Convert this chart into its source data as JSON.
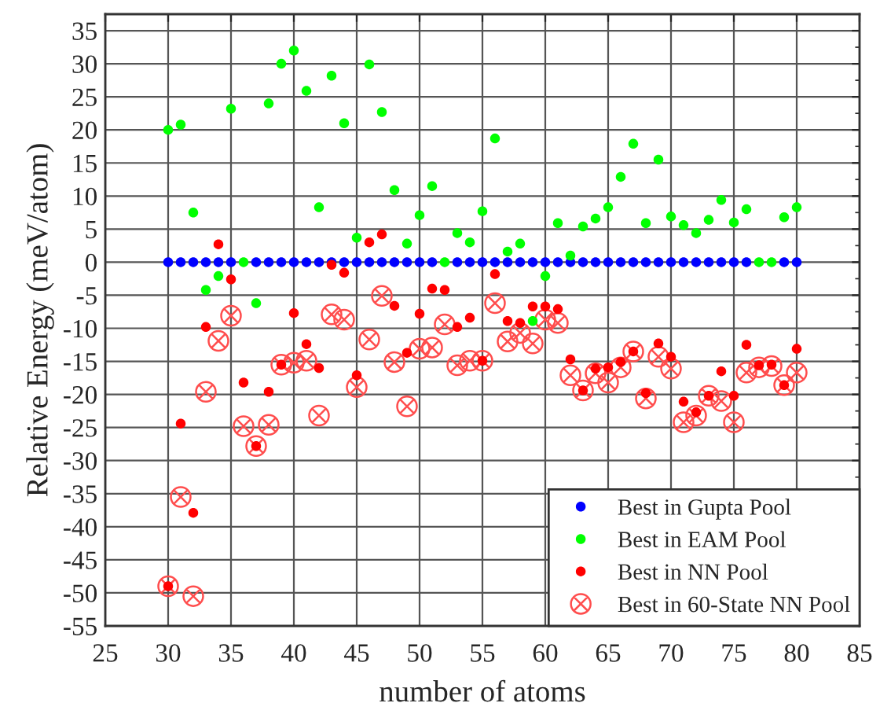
{
  "chart_data": {
    "type": "scatter",
    "xlabel": "number of atoms",
    "ylabel": "Relative Energy (meV/atom)",
    "xlim": [
      25,
      85
    ],
    "xticks": [
      25,
      30,
      35,
      40,
      45,
      50,
      55,
      60,
      65,
      70,
      75,
      80,
      85
    ],
    "ylim": [
      -55,
      37.5
    ],
    "yticks": [
      -55,
      -50,
      -45,
      -40,
      -35,
      -30,
      -25,
      -20,
      -15,
      -10,
      -5,
      0,
      5,
      10,
      15,
      20,
      25,
      30,
      35
    ],
    "grid": true,
    "legend": "bottom right",
    "series": [
      {
        "name": "Best in Gupta Pool",
        "color": "#0000ff",
        "marker": "circle",
        "x": [
          30,
          31,
          32,
          33,
          34,
          35,
          37,
          38,
          39,
          40,
          41,
          42,
          43,
          44,
          45,
          46,
          47,
          48,
          49,
          50,
          51,
          53,
          54,
          55,
          56,
          57,
          58,
          59,
          60,
          61,
          62,
          63,
          64,
          65,
          66,
          67,
          68,
          69,
          70,
          71,
          72,
          73,
          74,
          75,
          76,
          79,
          80
        ],
        "values": [
          0,
          0,
          0,
          0,
          0,
          0,
          0,
          0,
          0,
          0,
          0,
          0,
          0,
          0,
          0,
          0,
          0,
          0,
          0,
          0,
          0,
          0,
          0,
          0,
          0,
          0,
          0,
          0,
          0,
          0,
          0,
          0,
          0,
          0,
          0,
          0,
          0,
          0,
          0,
          0,
          0,
          0,
          0,
          0,
          0,
          0,
          0
        ]
      },
      {
        "name": "Best in EAM Pool",
        "color": "#00ff00",
        "marker": "circle",
        "x": [
          30,
          31,
          32,
          33,
          34,
          35,
          36,
          37,
          38,
          39,
          40,
          41,
          42,
          43,
          44,
          45,
          46,
          47,
          48,
          49,
          50,
          51,
          52,
          53,
          54,
          55,
          56,
          57,
          58,
          59,
          60,
          61,
          62,
          63,
          64,
          65,
          66,
          67,
          68,
          69,
          70,
          71,
          72,
          73,
          74,
          75,
          76,
          77,
          78,
          79,
          80
        ],
        "values": [
          20.0,
          20.8,
          7.5,
          -4.2,
          -2.1,
          23.2,
          0,
          -6.2,
          24.0,
          30.0,
          32.0,
          25.9,
          8.3,
          28.2,
          21.0,
          3.7,
          29.9,
          22.7,
          10.9,
          2.8,
          7.1,
          11.5,
          0,
          4.4,
          3.0,
          7.7,
          18.7,
          1.6,
          2.8,
          -8.9,
          -2.1,
          5.9,
          1.0,
          5.4,
          6.6,
          8.3,
          12.9,
          17.9,
          5.9,
          15.5,
          6.9,
          5.6,
          4.4,
          6.4,
          9.4,
          6.0,
          8.0,
          0,
          0,
          6.8,
          8.3
        ]
      },
      {
        "name": "Best in NN Pool",
        "color": "#ff0000",
        "marker": "circle",
        "x": [
          30,
          31,
          32,
          33,
          34,
          35,
          36,
          37,
          38,
          39,
          40,
          41,
          42,
          43,
          44,
          45,
          46,
          47,
          48,
          49,
          50,
          51,
          52,
          53,
          54,
          55,
          56,
          57,
          58,
          59,
          60,
          61,
          62,
          63,
          64,
          65,
          66,
          67,
          68,
          69,
          70,
          71,
          72,
          73,
          74,
          75,
          76,
          77,
          78,
          79,
          80
        ],
        "values": [
          -49.0,
          -24.4,
          -37.9,
          -9.8,
          2.7,
          -2.6,
          -18.2,
          -27.8,
          -19.6,
          -15.5,
          -7.7,
          -12.4,
          -16.0,
          -0.4,
          -1.6,
          -17.1,
          3.0,
          4.2,
          -6.6,
          -13.7,
          -7.8,
          -4.0,
          -4.2,
          -9.8,
          -8.4,
          -14.9,
          -1.8,
          -8.9,
          -9.2,
          -6.7,
          -6.7,
          -7.1,
          -14.7,
          -19.4,
          -16.1,
          -15.9,
          -15.1,
          -13.5,
          -19.8,
          -12.3,
          -14.3,
          -21.1,
          -22.7,
          -20.2,
          -16.5,
          -20.2,
          -12.5,
          -15.6,
          -15.5,
          -18.6,
          -13.1
        ]
      },
      {
        "name": "Best in 60-State NN Pool",
        "color": "#ff4d4d",
        "marker": "cross",
        "x": [
          30,
          31,
          32,
          33,
          34,
          35,
          36,
          37,
          38,
          39,
          40,
          41,
          42,
          43,
          44,
          45,
          46,
          47,
          48,
          49,
          50,
          51,
          52,
          53,
          54,
          55,
          56,
          57,
          58,
          59,
          60,
          61,
          62,
          63,
          64,
          65,
          66,
          67,
          68,
          69,
          70,
          71,
          72,
          73,
          74,
          75,
          76,
          77,
          78,
          79,
          80
        ],
        "values": [
          -49.0,
          -35.5,
          -50.5,
          -19.6,
          -11.9,
          -8.1,
          -24.8,
          -27.8,
          -24.6,
          -15.5,
          -15.2,
          -14.9,
          -23.2,
          -7.9,
          -8.7,
          -18.9,
          -11.7,
          -5.1,
          -15.1,
          -21.8,
          -13.1,
          -12.9,
          -9.4,
          -15.6,
          -14.9,
          -14.9,
          -6.2,
          -12.0,
          -10.7,
          -12.3,
          -8.7,
          -9.2,
          -17.1,
          -19.4,
          -16.8,
          -18.2,
          -15.9,
          -13.5,
          -20.6,
          -14.3,
          -16.1,
          -24.2,
          -23.2,
          -20.2,
          -21.0,
          -24.2,
          -16.7,
          -15.9,
          -15.7,
          -18.6,
          -16.7
        ]
      }
    ]
  }
}
